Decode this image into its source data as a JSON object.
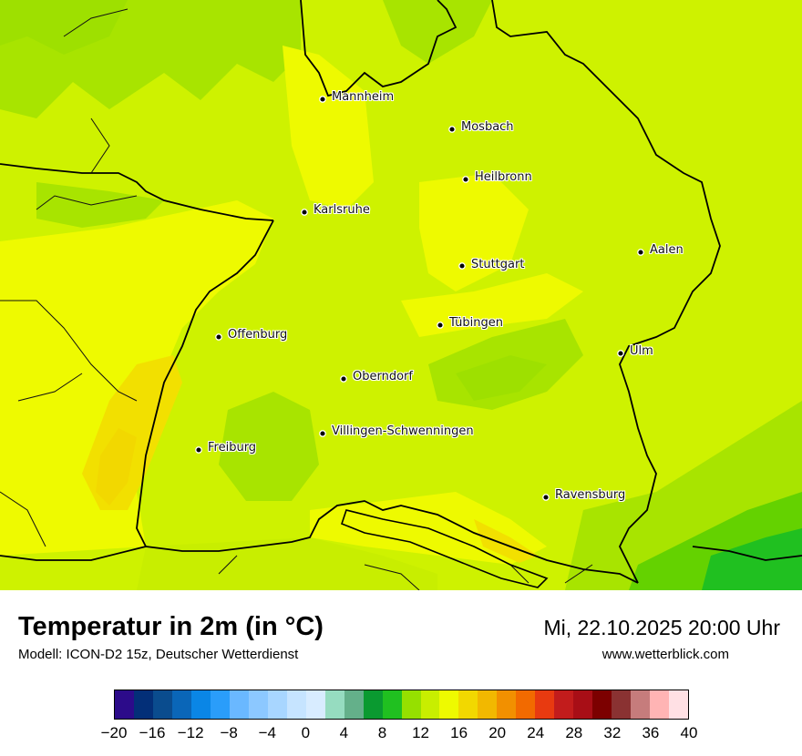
{
  "title": "Temperatur in 2m (in °C)",
  "model": "Modell: ICON-D2 15z, Deutscher Wetterdienst",
  "datetime": "Mi, 22.10.2025 20:00 Uhr",
  "website": "www.wetterblick.com",
  "cities": [
    {
      "name": "Mannheim"
    },
    {
      "name": "Mosbach"
    },
    {
      "name": "Heilbronn"
    },
    {
      "name": "Karlsruhe"
    },
    {
      "name": "Aalen"
    },
    {
      "name": "Stuttgart"
    },
    {
      "name": "Tübingen"
    },
    {
      "name": "Offenburg"
    },
    {
      "name": "Ulm"
    },
    {
      "name": "Oberndorf"
    },
    {
      "name": "Villingen-Schwenningen"
    },
    {
      "name": "Freiburg"
    },
    {
      "name": "Ravensburg"
    }
  ],
  "colorscale": {
    "unit": "°C",
    "min": -20,
    "max": 40,
    "step": 2,
    "colors": [
      "#2c0b8a",
      "#032f78",
      "#0a4c8e",
      "#0a66b8",
      "#0a86e6",
      "#2a9dfa",
      "#6ab8ff",
      "#8cc8ff",
      "#a8d6ff",
      "#c6e4ff",
      "#d8ecff",
      "#96dcc0",
      "#64b08a",
      "#0a9a30",
      "#20c020",
      "#96e000",
      "#c8ee00",
      "#eefa00",
      "#f2d800",
      "#f2b800",
      "#f29000",
      "#f26a00",
      "#e83a10",
      "#c21c1c",
      "#a80e16",
      "#7c0000",
      "#8a3232",
      "#c67c7c",
      "#ffb4b4",
      "#ffe0e4"
    ],
    "tick_labels": [
      "−20",
      "−16",
      "−12",
      "−8",
      "−4",
      "0",
      "4",
      "8",
      "12",
      "16",
      "20",
      "24",
      "28",
      "32",
      "36",
      "40"
    ]
  }
}
